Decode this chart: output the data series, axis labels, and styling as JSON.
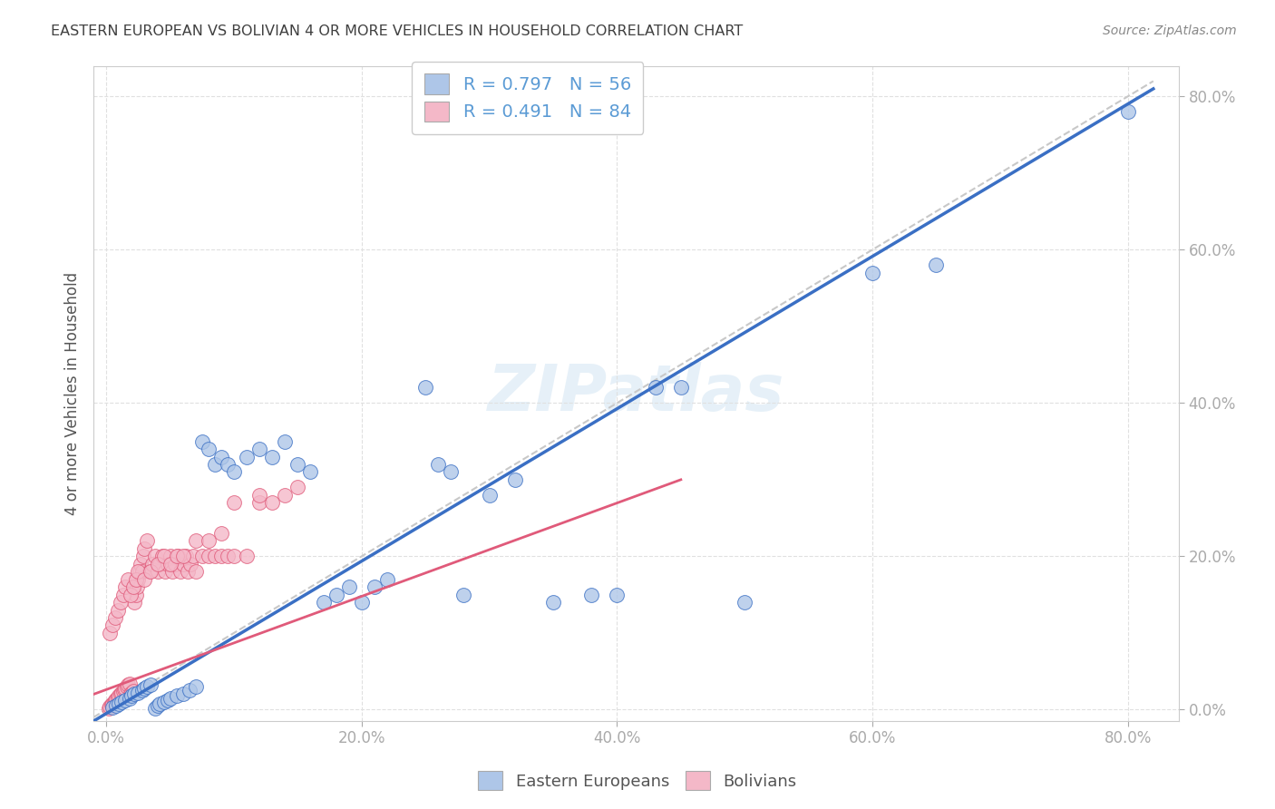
{
  "title": "EASTERN EUROPEAN VS BOLIVIAN 4 OR MORE VEHICLES IN HOUSEHOLD CORRELATION CHART",
  "source": "Source: ZipAtlas.com",
  "ylabel_label": "4 or more Vehicles in Household",
  "watermark": "ZIPatlas",
  "legend_blue_label": "Eastern Europeans",
  "legend_pink_label": "Bolivians",
  "blue_R": 0.797,
  "blue_N": 56,
  "pink_R": 0.491,
  "pink_N": 84,
  "blue_color": "#aec6e8",
  "pink_color": "#f4b8c8",
  "blue_line_color": "#3a6fc4",
  "pink_line_color": "#e05a7a",
  "dashed_line_color": "#c8c8c8",
  "grid_color": "#e0e0e0",
  "title_color": "#404040",
  "axis_tick_color": "#5b9bd5",
  "blue_scatter_x": [
    0.005,
    0.008,
    0.01,
    0.012,
    0.015,
    0.018,
    0.02,
    0.022,
    0.025,
    0.028,
    0.03,
    0.032,
    0.035,
    0.038,
    0.04,
    0.042,
    0.045,
    0.048,
    0.05,
    0.055,
    0.06,
    0.065,
    0.07,
    0.075,
    0.08,
    0.085,
    0.09,
    0.095,
    0.1,
    0.11,
    0.12,
    0.13,
    0.14,
    0.15,
    0.16,
    0.17,
    0.18,
    0.19,
    0.2,
    0.21,
    0.22,
    0.25,
    0.26,
    0.27,
    0.28,
    0.3,
    0.32,
    0.35,
    0.38,
    0.4,
    0.43,
    0.45,
    0.5,
    0.6,
    0.65,
    0.8
  ],
  "blue_scatter_y": [
    0.003,
    0.005,
    0.008,
    0.01,
    0.012,
    0.015,
    0.018,
    0.02,
    0.022,
    0.025,
    0.028,
    0.03,
    0.032,
    0.002,
    0.005,
    0.008,
    0.01,
    0.012,
    0.015,
    0.018,
    0.02,
    0.025,
    0.03,
    0.35,
    0.34,
    0.32,
    0.33,
    0.32,
    0.31,
    0.33,
    0.34,
    0.33,
    0.35,
    0.32,
    0.31,
    0.14,
    0.15,
    0.16,
    0.14,
    0.16,
    0.17,
    0.42,
    0.32,
    0.31,
    0.15,
    0.28,
    0.3,
    0.14,
    0.15,
    0.15,
    0.42,
    0.42,
    0.14,
    0.57,
    0.58,
    0.78
  ],
  "pink_scatter_x": [
    0.002,
    0.003,
    0.004,
    0.005,
    0.006,
    0.007,
    0.008,
    0.009,
    0.01,
    0.011,
    0.012,
    0.013,
    0.014,
    0.015,
    0.016,
    0.017,
    0.018,
    0.019,
    0.02,
    0.021,
    0.022,
    0.023,
    0.024,
    0.025,
    0.026,
    0.027,
    0.028,
    0.029,
    0.03,
    0.032,
    0.034,
    0.036,
    0.038,
    0.04,
    0.042,
    0.044,
    0.046,
    0.048,
    0.05,
    0.052,
    0.054,
    0.056,
    0.058,
    0.06,
    0.062,
    0.064,
    0.066,
    0.068,
    0.07,
    0.075,
    0.08,
    0.085,
    0.09,
    0.095,
    0.1,
    0.11,
    0.12,
    0.13,
    0.14,
    0.15,
    0.003,
    0.005,
    0.007,
    0.009,
    0.011,
    0.013,
    0.015,
    0.017,
    0.019,
    0.021,
    0.023,
    0.025,
    0.03,
    0.035,
    0.04,
    0.045,
    0.05,
    0.055,
    0.06,
    0.07,
    0.08,
    0.09,
    0.1,
    0.12
  ],
  "pink_scatter_y": [
    0.002,
    0.004,
    0.006,
    0.008,
    0.01,
    0.012,
    0.014,
    0.016,
    0.018,
    0.02,
    0.022,
    0.024,
    0.026,
    0.028,
    0.03,
    0.032,
    0.034,
    0.02,
    0.022,
    0.024,
    0.14,
    0.15,
    0.16,
    0.17,
    0.18,
    0.19,
    0.18,
    0.2,
    0.21,
    0.22,
    0.18,
    0.19,
    0.2,
    0.18,
    0.19,
    0.2,
    0.18,
    0.19,
    0.2,
    0.18,
    0.19,
    0.2,
    0.18,
    0.19,
    0.2,
    0.18,
    0.19,
    0.2,
    0.18,
    0.2,
    0.2,
    0.2,
    0.2,
    0.2,
    0.2,
    0.2,
    0.27,
    0.27,
    0.28,
    0.29,
    0.1,
    0.11,
    0.12,
    0.13,
    0.14,
    0.15,
    0.16,
    0.17,
    0.15,
    0.16,
    0.17,
    0.18,
    0.17,
    0.18,
    0.19,
    0.2,
    0.19,
    0.2,
    0.2,
    0.22,
    0.22,
    0.23,
    0.27,
    0.28
  ]
}
